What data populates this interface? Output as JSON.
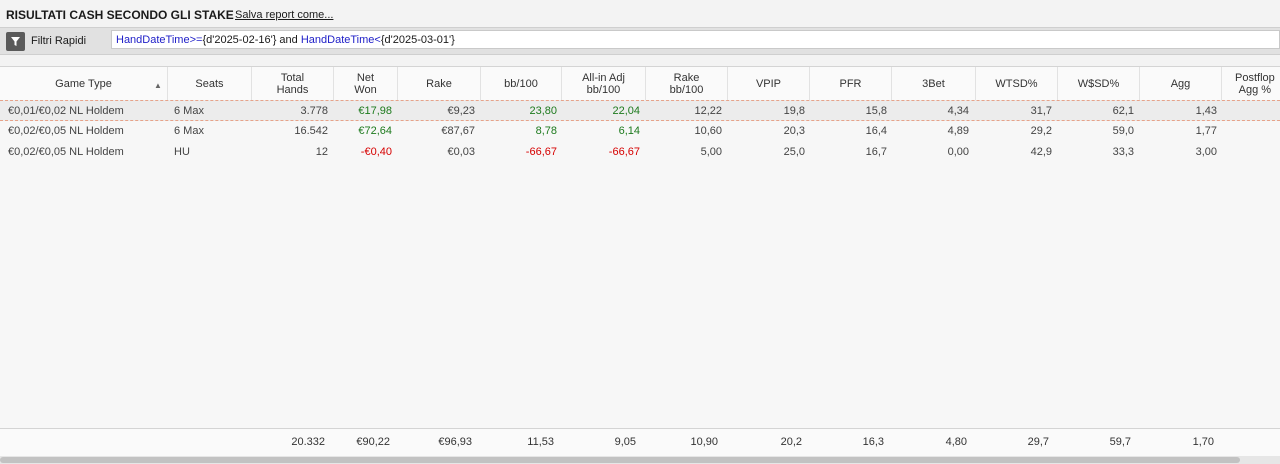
{
  "header": {
    "title": "RISULTATI CASH SECONDO GLI STAKE",
    "save_link": "Salva report come..."
  },
  "filter": {
    "label": "Filtri Rapidi",
    "icon": "filter-icon",
    "query_parts": {
      "f1": "HandDateTime",
      "op1": ">=",
      "v1": "{d'2025-02-16'}",
      "and": " and ",
      "f2": "HandDateTime",
      "op2": "<",
      "v2": "{d'2025-03-01'}"
    }
  },
  "table": {
    "columns": {
      "game_type": "Game Type",
      "seats": "Seats",
      "total_hands_1": "Total",
      "total_hands_2": "Hands",
      "net_won_1": "Net",
      "net_won_2": "Won",
      "rake": "Rake",
      "bb100": "bb/100",
      "allin_1": "All-in Adj",
      "allin_2": "bb/100",
      "rake_bb_1": "Rake",
      "rake_bb_2": "bb/100",
      "vpip": "VPIP",
      "pfr": "PFR",
      "threebet": "3Bet",
      "wtsd": "WTSD%",
      "wssd": "W$SD%",
      "agg": "Agg",
      "postflop_1": "Postflop",
      "postflop_2": "Agg %"
    },
    "sort_indicator": "▲",
    "rows": [
      {
        "game_type": "€0,01/€0,02 NL Holdem",
        "seats": "6 Max",
        "hands": "3.778",
        "net_won": "€17,98",
        "rake": "€9,23",
        "bb100": "23,80",
        "allin": "22,04",
        "rake_bb": "12,22",
        "vpip": "19,8",
        "pfr": "15,8",
        "threebet": "4,34",
        "wtsd": "31,7",
        "wssd": "62,1",
        "agg": "1,43",
        "postflop": ""
      },
      {
        "game_type": "€0,02/€0,05 NL Holdem",
        "seats": "6 Max",
        "hands": "16.542",
        "net_won": "€72,64",
        "rake": "€87,67",
        "bb100": "8,78",
        "allin": "6,14",
        "rake_bb": "10,60",
        "vpip": "20,3",
        "pfr": "16,4",
        "threebet": "4,89",
        "wtsd": "29,2",
        "wssd": "59,0",
        "agg": "1,77",
        "postflop": ""
      },
      {
        "game_type": "€0,02/€0,05 NL Holdem",
        "seats": "HU",
        "hands": "12",
        "net_won": "-€0,40",
        "rake": "€0,03",
        "bb100": "-66,67",
        "allin": "-66,67",
        "rake_bb": "5,00",
        "vpip": "25,0",
        "pfr": "16,7",
        "threebet": "0,00",
        "wtsd": "42,9",
        "wssd": "33,3",
        "agg": "3,00",
        "postflop": ""
      }
    ],
    "totals": {
      "hands": "20.332",
      "net_won": "€90,22",
      "rake": "€96,93",
      "bb100": "11,53",
      "allin": "9,05",
      "rake_bb": "10,90",
      "vpip": "20,2",
      "pfr": "16,3",
      "threebet": "4,80",
      "wtsd": "29,7",
      "wssd": "59,7",
      "agg": "1,70"
    }
  },
  "colors": {
    "positive": "#1d7a1d",
    "negative": "#d60000",
    "selected_row_border": "#e6a38a"
  }
}
